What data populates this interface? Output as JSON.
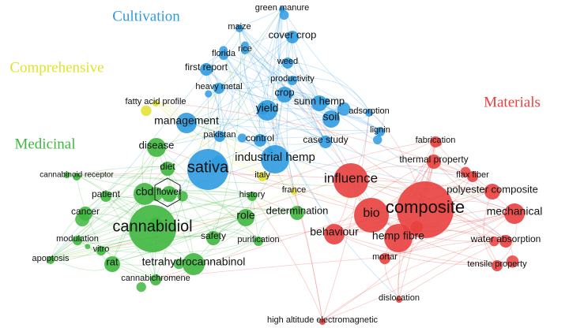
{
  "clusters": [
    {
      "label": "Cultivation",
      "color": "#2f9be0",
      "nodes": [
        "green manure",
        "maize",
        "cover crop",
        "rice",
        "florida",
        "weed",
        "first report",
        "productivity",
        "heavy metal",
        "crop",
        "sunn hemp",
        "yield",
        "soil",
        "management",
        "adsorption",
        "lignin",
        "pakistan",
        "control",
        "case study",
        "industrial hemp",
        "sativa"
      ]
    },
    {
      "label": "Comprehensive",
      "color": "#e2e22a",
      "nodes": [
        "fatty acid profile",
        "italy",
        "france"
      ]
    },
    {
      "label": "Medicinal",
      "color": "#3fb73f",
      "nodes": [
        "disease",
        "cannabinoid receptor",
        "diet",
        "patient",
        "cbd",
        "flower",
        "cancer",
        "history",
        "role",
        "determination",
        "cannabidiol",
        "safety",
        "purification",
        "modulation",
        "vitro",
        "apoptosis",
        "rat",
        "tetrahydrocannabinol",
        "cannabichromene"
      ]
    },
    {
      "label": "Materials",
      "color": "#e8403e",
      "nodes": [
        "fabrication",
        "thermal property",
        "flax fiber",
        "influence",
        "polyester composite",
        "composite",
        "bio",
        "mechanical",
        "behaviour",
        "hemp fibre",
        "water absorption",
        "mortar",
        "tensile property",
        "dislocation",
        "high altitude electromagnetic"
      ]
    }
  ]
}
